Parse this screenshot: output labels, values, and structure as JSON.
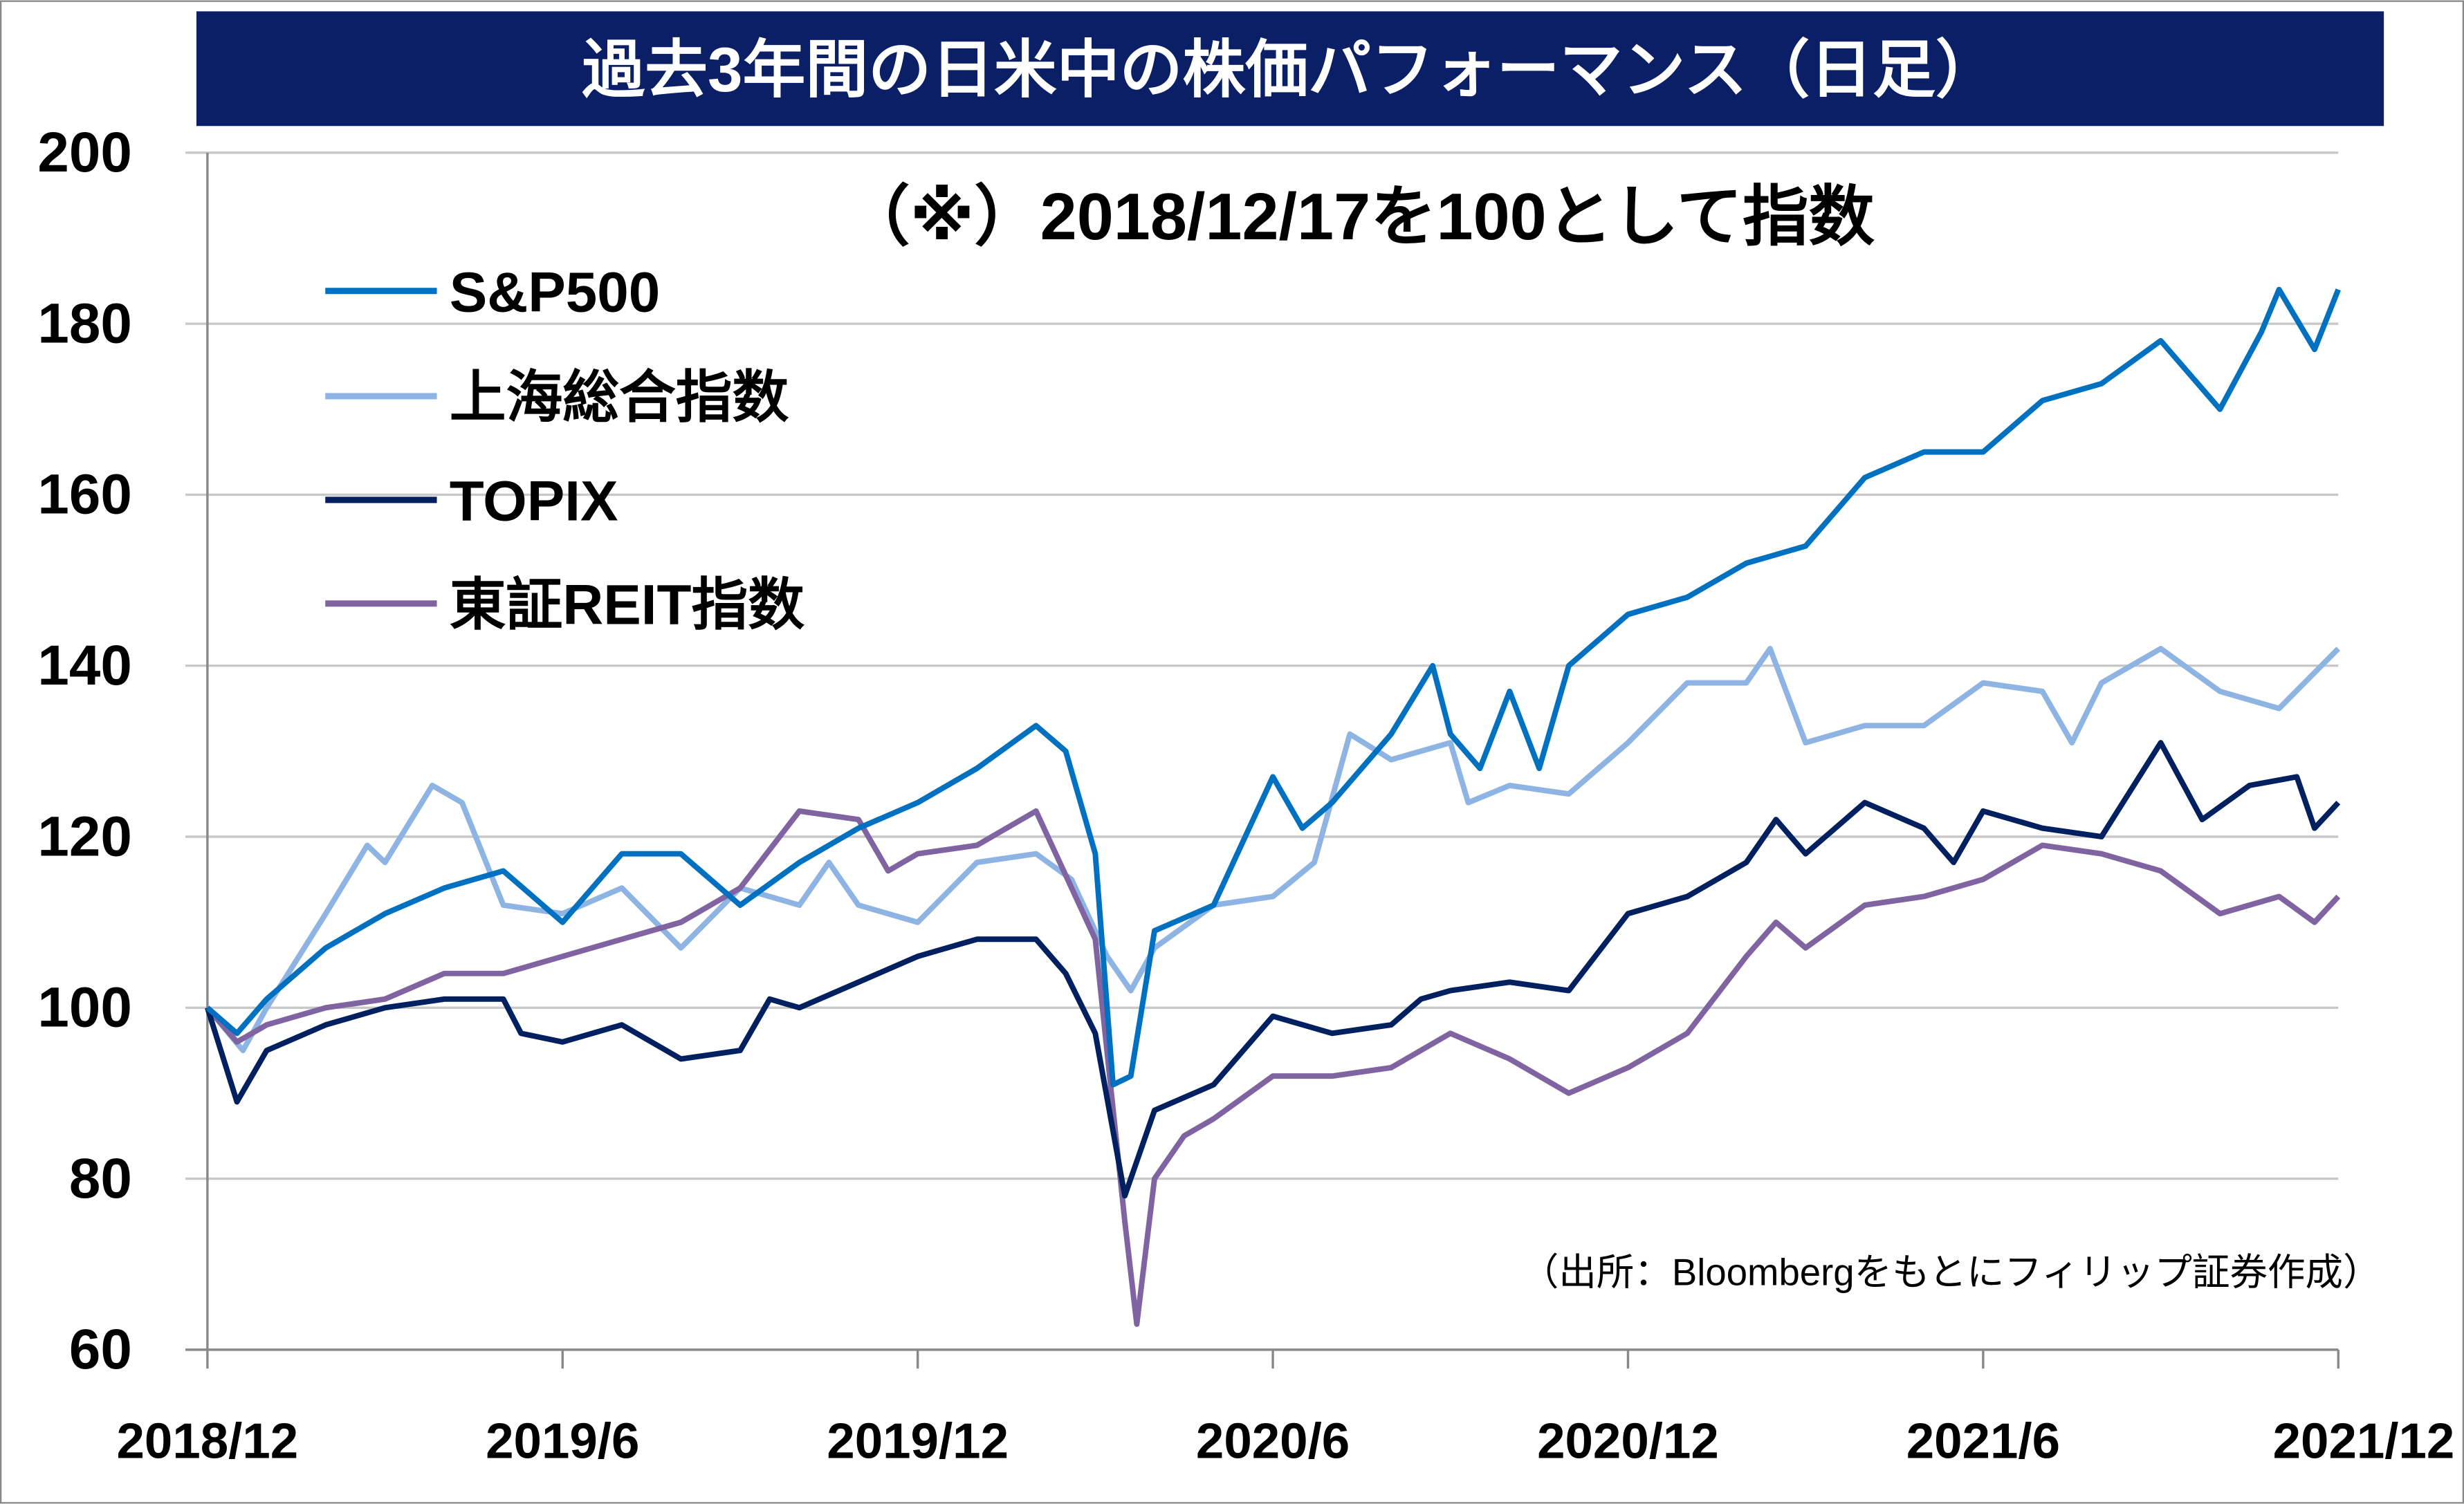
{
  "chart_data": {
    "type": "line",
    "title": "過去3年間の日米中の株価パフォーマンス（日足）",
    "subtitle": "（※）2018/12/17を100として指数",
    "source": "（出所：Bloombergをもとにフィリップ証券作成）",
    "xlabel": "",
    "ylabel": "",
    "x_unit": "months since 2018/12/17",
    "xlim": [
      0,
      36
    ],
    "ylim": [
      60,
      200
    ],
    "yticks": [
      "60",
      "80",
      "100",
      "120",
      "140",
      "160",
      "180",
      "200"
    ],
    "xticks": [
      {
        "label": "2018/12",
        "x": 0
      },
      {
        "label": "2019/6",
        "x": 6
      },
      {
        "label": "2019/12",
        "x": 12
      },
      {
        "label": "2020/6",
        "x": 18
      },
      {
        "label": "2020/12",
        "x": 24
      },
      {
        "label": "2021/6",
        "x": 30
      },
      {
        "label": "2021/12",
        "x": 36
      }
    ],
    "grid": true,
    "legend_position": "top-left",
    "series": [
      {
        "name": "S&P500",
        "color": "#0070c0",
        "points": [
          [
            0,
            100
          ],
          [
            0.5,
            97
          ],
          [
            1,
            101
          ],
          [
            2,
            107
          ],
          [
            3,
            111
          ],
          [
            4,
            114
          ],
          [
            5,
            116
          ],
          [
            6,
            110
          ],
          [
            7,
            118
          ],
          [
            8,
            118
          ],
          [
            9,
            112
          ],
          [
            10,
            117
          ],
          [
            11,
            121
          ],
          [
            12,
            124
          ],
          [
            13,
            128
          ],
          [
            14,
            133
          ],
          [
            14.5,
            130
          ],
          [
            15,
            118
          ],
          [
            15.3,
            91
          ],
          [
            15.6,
            92
          ],
          [
            16,
            109
          ],
          [
            17,
            112
          ],
          [
            18,
            127
          ],
          [
            18.5,
            121
          ],
          [
            19,
            124
          ],
          [
            20,
            132
          ],
          [
            20.7,
            140
          ],
          [
            21,
            132
          ],
          [
            21.5,
            128
          ],
          [
            22,
            137
          ],
          [
            22.5,
            128
          ],
          [
            23,
            140
          ],
          [
            24,
            146
          ],
          [
            25,
            148
          ],
          [
            26,
            152
          ],
          [
            27,
            154
          ],
          [
            28,
            162
          ],
          [
            29,
            165
          ],
          [
            30,
            165
          ],
          [
            31,
            171
          ],
          [
            32,
            173
          ],
          [
            33,
            178
          ],
          [
            34,
            170
          ],
          [
            34.7,
            179
          ],
          [
            35,
            184
          ],
          [
            35.6,
            177
          ],
          [
            36,
            184
          ]
        ]
      },
      {
        "name": "上海総合指数",
        "color": "#8db4e2",
        "points": [
          [
            0,
            100
          ],
          [
            0.6,
            95
          ],
          [
            1,
            100
          ],
          [
            2,
            111
          ],
          [
            2.7,
            119
          ],
          [
            3,
            117
          ],
          [
            3.8,
            126
          ],
          [
            4.3,
            124
          ],
          [
            5,
            112
          ],
          [
            6,
            111
          ],
          [
            7,
            114
          ],
          [
            8,
            107
          ],
          [
            9,
            114
          ],
          [
            10,
            112
          ],
          [
            10.5,
            117
          ],
          [
            11,
            112
          ],
          [
            12,
            110
          ],
          [
            13,
            117
          ],
          [
            14,
            118
          ],
          [
            14.6,
            115
          ],
          [
            15.2,
            106
          ],
          [
            15.6,
            102
          ],
          [
            16,
            107
          ],
          [
            17,
            112
          ],
          [
            18,
            113
          ],
          [
            18.7,
            117
          ],
          [
            19.3,
            132
          ],
          [
            20,
            129
          ],
          [
            21,
            131
          ],
          [
            21.3,
            124
          ],
          [
            22,
            126
          ],
          [
            23,
            125
          ],
          [
            24,
            131
          ],
          [
            25,
            138
          ],
          [
            26,
            138
          ],
          [
            26.4,
            142
          ],
          [
            27,
            131
          ],
          [
            28,
            133
          ],
          [
            29,
            133
          ],
          [
            30,
            138
          ],
          [
            31,
            137
          ],
          [
            31.5,
            131
          ],
          [
            32,
            138
          ],
          [
            33,
            142
          ],
          [
            34,
            137
          ],
          [
            35,
            135
          ],
          [
            36,
            142
          ]
        ]
      },
      {
        "name": "TOPIX",
        "color": "#002060",
        "points": [
          [
            0,
            100
          ],
          [
            0.5,
            89
          ],
          [
            1,
            95
          ],
          [
            2,
            98
          ],
          [
            3,
            100
          ],
          [
            4,
            101
          ],
          [
            5,
            101
          ],
          [
            5.3,
            97
          ],
          [
            6,
            96
          ],
          [
            7,
            98
          ],
          [
            8,
            94
          ],
          [
            9,
            95
          ],
          [
            9.5,
            101
          ],
          [
            10,
            100
          ],
          [
            11,
            103
          ],
          [
            12,
            106
          ],
          [
            13,
            108
          ],
          [
            14,
            108
          ],
          [
            14.5,
            104
          ],
          [
            15,
            97
          ],
          [
            15.5,
            78
          ],
          [
            16,
            88
          ],
          [
            17,
            91
          ],
          [
            18,
            99
          ],
          [
            19,
            97
          ],
          [
            20,
            98
          ],
          [
            20.5,
            101
          ],
          [
            21,
            102
          ],
          [
            22,
            103
          ],
          [
            23,
            102
          ],
          [
            24,
            111
          ],
          [
            25,
            113
          ],
          [
            26,
            117
          ],
          [
            26.5,
            122
          ],
          [
            27,
            118
          ],
          [
            28,
            124
          ],
          [
            29,
            121
          ],
          [
            29.5,
            117
          ],
          [
            30,
            123
          ],
          [
            31,
            121
          ],
          [
            32,
            120
          ],
          [
            33,
            131
          ],
          [
            33.7,
            122
          ],
          [
            34.5,
            126
          ],
          [
            35.3,
            127
          ],
          [
            35.6,
            121
          ],
          [
            36,
            124
          ]
        ]
      },
      {
        "name": "東証REIT指数",
        "color": "#8064a2",
        "points": [
          [
            0,
            100
          ],
          [
            0.5,
            96
          ],
          [
            1,
            98
          ],
          [
            2,
            100
          ],
          [
            3,
            101
          ],
          [
            4,
            104
          ],
          [
            5,
            104
          ],
          [
            6,
            106
          ],
          [
            7,
            108
          ],
          [
            8,
            110
          ],
          [
            9,
            114
          ],
          [
            10,
            123
          ],
          [
            11,
            122
          ],
          [
            11.5,
            116
          ],
          [
            12,
            118
          ],
          [
            13,
            119
          ],
          [
            14,
            123
          ],
          [
            15,
            108
          ],
          [
            15.5,
            75
          ],
          [
            15.7,
            63
          ],
          [
            16,
            80
          ],
          [
            16.5,
            85
          ],
          [
            17,
            87
          ],
          [
            18,
            92
          ],
          [
            19,
            92
          ],
          [
            20,
            93
          ],
          [
            21,
            97
          ],
          [
            22,
            94
          ],
          [
            23,
            90
          ],
          [
            24,
            93
          ],
          [
            25,
            97
          ],
          [
            26,
            106
          ],
          [
            26.5,
            110
          ],
          [
            27,
            107
          ],
          [
            28,
            112
          ],
          [
            29,
            113
          ],
          [
            30,
            115
          ],
          [
            31,
            119
          ],
          [
            32,
            118
          ],
          [
            33,
            116
          ],
          [
            34,
            111
          ],
          [
            35,
            113
          ],
          [
            35.6,
            110
          ],
          [
            36,
            113
          ]
        ]
      }
    ]
  },
  "colors": {
    "title_bar": "#0a1f66",
    "title_text": "#ffffff",
    "grid": "#c8c8c8"
  }
}
